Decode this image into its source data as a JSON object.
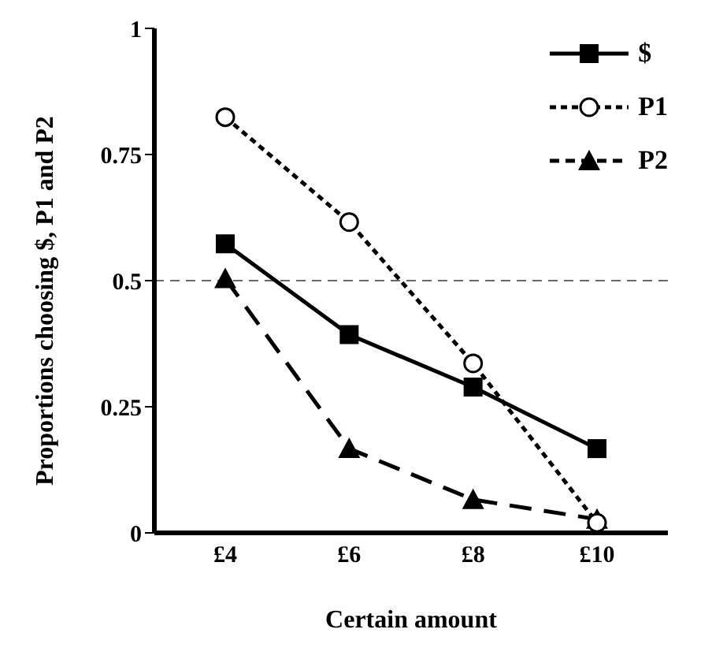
{
  "chart_data": {
    "type": "line",
    "xlabel": "Certain amount",
    "ylabel": "Proportions choosing $, P1 and P2",
    "categories": [
      "£4",
      "£6",
      "£8",
      "£10"
    ],
    "series": [
      {
        "name": "$",
        "color": "#000000",
        "values": [
          0.573,
          0.393,
          0.289,
          0.167
        ],
        "marker": "square",
        "line_style": "solid"
      },
      {
        "name": "P1",
        "color": "#000000",
        "values": [
          0.824,
          0.616,
          0.336,
          0.02
        ],
        "marker": "circle",
        "line_style": "dotted"
      },
      {
        "name": "P2",
        "color": "#000000",
        "values": [
          0.504,
          0.167,
          0.066,
          0.027
        ],
        "marker": "triangle",
        "line_style": "dashed"
      }
    ],
    "ylim": [
      0,
      1
    ],
    "yticks": [
      0,
      0.25,
      0.5,
      0.75,
      1
    ],
    "grid": false,
    "legend": "top right",
    "ref_lines": [
      {
        "axis": "y",
        "value": 0.5,
        "color": "#666666",
        "line_style": "dashed"
      }
    ]
  }
}
